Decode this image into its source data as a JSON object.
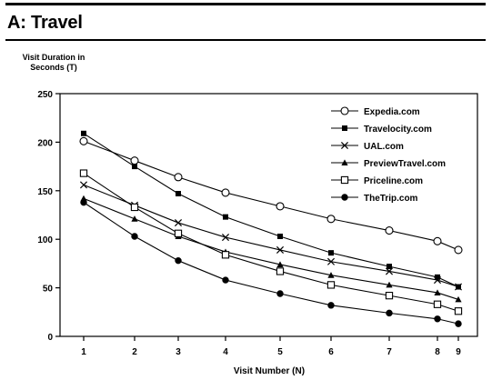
{
  "panel": {
    "title": "A: Travel"
  },
  "chart_data": {
    "type": "line",
    "title": "A: Travel",
    "ylabel_line1": "Visit Duration in",
    "ylabel_line2": "Seconds (T)",
    "xlabel": "Visit Number (N)",
    "x": [
      1,
      2,
      3,
      4,
      5,
      6,
      7,
      8,
      9
    ],
    "x_ticks": [
      "1",
      "2",
      "3",
      "4",
      "5",
      "6",
      "7",
      "8",
      "9"
    ],
    "ylim": [
      0,
      250
    ],
    "y_ticks": [
      0,
      50,
      100,
      150,
      200,
      250
    ],
    "grid": false,
    "legend_position": "top-right",
    "series": [
      {
        "name": "Expedia.com",
        "marker": "open-circle",
        "values": [
          201,
          181,
          164,
          148,
          134,
          121,
          109,
          98,
          89
        ]
      },
      {
        "name": "Travelocity.com",
        "marker": "filled-square",
        "values": [
          209,
          175,
          147,
          123,
          103,
          86,
          72,
          61,
          51
        ]
      },
      {
        "name": "UAL.com",
        "marker": "x",
        "values": [
          156,
          135,
          117,
          102,
          89,
          77,
          67,
          58,
          51
        ]
      },
      {
        "name": "PreviewTravel.com",
        "marker": "filled-triangle",
        "values": [
          142,
          121,
          103,
          87,
          74,
          63,
          53,
          45,
          38
        ]
      },
      {
        "name": "Priceline.com",
        "marker": "open-square",
        "values": [
          168,
          133,
          106,
          84,
          67,
          53,
          42,
          33,
          26
        ]
      },
      {
        "name": "TheTrip.com",
        "marker": "filled-circle",
        "values": [
          138,
          103,
          78,
          58,
          44,
          32,
          24,
          18,
          13
        ]
      }
    ]
  }
}
